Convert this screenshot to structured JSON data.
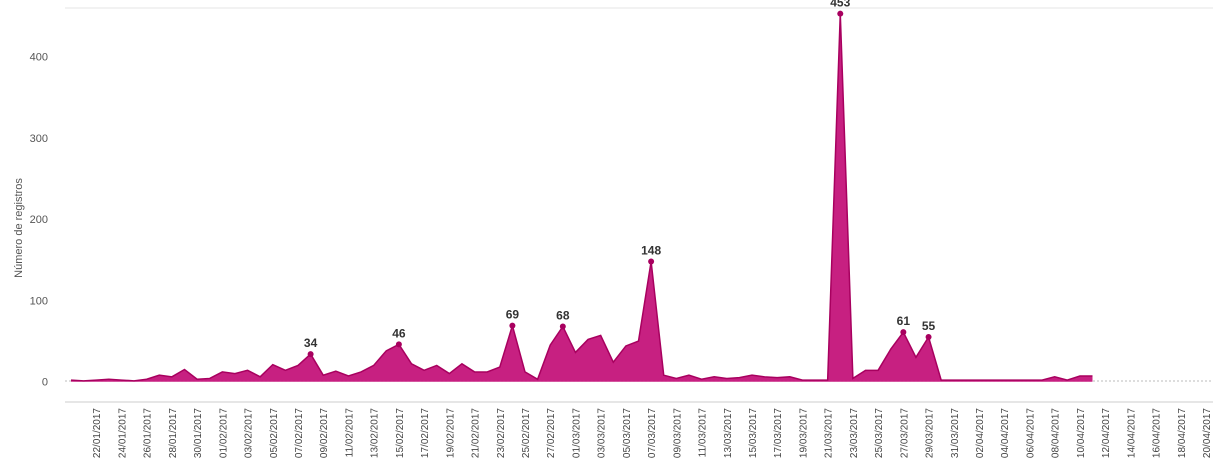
{
  "chart_data": {
    "type": "area",
    "title": "",
    "xlabel": "",
    "ylabel": "Número de registros",
    "ylim": [
      -25,
      460
    ],
    "yticks": [
      0,
      100,
      200,
      300,
      400
    ],
    "grid": false,
    "legend": "none",
    "color": "#c4147a",
    "x_start": "2017-01-20",
    "x_end": "2017-04-20",
    "tick_labels": [
      "22/01/2017",
      "24/01/2017",
      "26/01/2017",
      "28/01/2017",
      "30/01/2017",
      "01/02/2017",
      "03/02/2017",
      "05/02/2017",
      "07/02/2017",
      "09/02/2017",
      "11/02/2017",
      "13/02/2017",
      "15/02/2017",
      "17/02/2017",
      "19/02/2017",
      "21/02/2017",
      "23/02/2017",
      "25/02/2017",
      "27/02/2017",
      "01/03/2017",
      "03/03/2017",
      "05/03/2017",
      "07/03/2017",
      "09/03/2017",
      "11/03/2017",
      "13/03/2017",
      "15/03/2017",
      "17/03/2017",
      "19/03/2017",
      "21/03/2017",
      "23/03/2017",
      "25/03/2017",
      "27/03/2017",
      "29/03/2017",
      "31/03/2017",
      "02/04/2017",
      "04/04/2017",
      "06/04/2017",
      "08/04/2017",
      "10/04/2017",
      "12/04/2017",
      "14/04/2017",
      "16/04/2017",
      "18/04/2017",
      "20/04/2017"
    ],
    "series": [
      {
        "points": [
          [
            "2017-01-20",
            2
          ],
          [
            "2017-01-21",
            1
          ],
          [
            "2017-01-22",
            2
          ],
          [
            "2017-01-23",
            3
          ],
          [
            "2017-01-24",
            2
          ],
          [
            "2017-01-25",
            1
          ],
          [
            "2017-01-26",
            3
          ],
          [
            "2017-01-27",
            8
          ],
          [
            "2017-01-28",
            6
          ],
          [
            "2017-01-29",
            15
          ],
          [
            "2017-01-30",
            3
          ],
          [
            "2017-01-31",
            4
          ],
          [
            "2017-02-01",
            12
          ],
          [
            "2017-02-02",
            10
          ],
          [
            "2017-02-03",
            14
          ],
          [
            "2017-02-04",
            6
          ],
          [
            "2017-02-05",
            21
          ],
          [
            "2017-02-06",
            14
          ],
          [
            "2017-02-07",
            20
          ],
          [
            "2017-02-08",
            34
          ],
          [
            "2017-02-09",
            8
          ],
          [
            "2017-02-10",
            13
          ],
          [
            "2017-02-11",
            7
          ],
          [
            "2017-02-12",
            12
          ],
          [
            "2017-02-13",
            20
          ],
          [
            "2017-02-14",
            38
          ],
          [
            "2017-02-15",
            46
          ],
          [
            "2017-02-16",
            22
          ],
          [
            "2017-02-17",
            14
          ],
          [
            "2017-02-18",
            20
          ],
          [
            "2017-02-19",
            10
          ],
          [
            "2017-02-20",
            22
          ],
          [
            "2017-02-21",
            12
          ],
          [
            "2017-02-22",
            12
          ],
          [
            "2017-02-23",
            18
          ],
          [
            "2017-02-24",
            69
          ],
          [
            "2017-02-25",
            12
          ],
          [
            "2017-02-26",
            3
          ],
          [
            "2017-02-27",
            45
          ],
          [
            "2017-02-28",
            68
          ],
          [
            "2017-03-01",
            36
          ],
          [
            "2017-03-02",
            52
          ],
          [
            "2017-03-03",
            57
          ],
          [
            "2017-03-04",
            24
          ],
          [
            "2017-03-05",
            44
          ],
          [
            "2017-03-06",
            50
          ],
          [
            "2017-03-07",
            148
          ],
          [
            "2017-03-08",
            8
          ],
          [
            "2017-03-09",
            4
          ],
          [
            "2017-03-10",
            8
          ],
          [
            "2017-03-11",
            3
          ],
          [
            "2017-03-12",
            6
          ],
          [
            "2017-03-13",
            4
          ],
          [
            "2017-03-14",
            5
          ],
          [
            "2017-03-15",
            8
          ],
          [
            "2017-03-16",
            6
          ],
          [
            "2017-03-17",
            5
          ],
          [
            "2017-03-18",
            6
          ],
          [
            "2017-03-19",
            2
          ],
          [
            "2017-03-20",
            2
          ],
          [
            "2017-03-21",
            2
          ],
          [
            "2017-03-22",
            453
          ],
          [
            "2017-03-23",
            4
          ],
          [
            "2017-03-24",
            14
          ],
          [
            "2017-03-25",
            14
          ],
          [
            "2017-03-26",
            40
          ],
          [
            "2017-03-27",
            61
          ],
          [
            "2017-03-28",
            30
          ],
          [
            "2017-03-29",
            55
          ],
          [
            "2017-03-30",
            2
          ],
          [
            "2017-03-31",
            2
          ],
          [
            "2017-04-01",
            2
          ],
          [
            "2017-04-02",
            2
          ],
          [
            "2017-04-03",
            2
          ],
          [
            "2017-04-04",
            2
          ],
          [
            "2017-04-05",
            2
          ],
          [
            "2017-04-06",
            2
          ],
          [
            "2017-04-07",
            2
          ],
          [
            "2017-04-08",
            6
          ],
          [
            "2017-04-09",
            2
          ],
          [
            "2017-04-10",
            7
          ],
          [
            "2017-04-11",
            7
          ]
        ],
        "labels": [
          {
            "date": "2017-02-08",
            "value": 34,
            "text": "34"
          },
          {
            "date": "2017-02-15",
            "value": 46,
            "text": "46"
          },
          {
            "date": "2017-02-24",
            "value": 69,
            "text": "69"
          },
          {
            "date": "2017-02-28",
            "value": 68,
            "text": "68"
          },
          {
            "date": "2017-03-07",
            "value": 148,
            "text": "148"
          },
          {
            "date": "2017-03-22",
            "value": 453,
            "text": "453"
          },
          {
            "date": "2017-03-27",
            "value": 61,
            "text": "61"
          },
          {
            "date": "2017-03-29",
            "value": 55,
            "text": "55"
          }
        ]
      }
    ]
  }
}
